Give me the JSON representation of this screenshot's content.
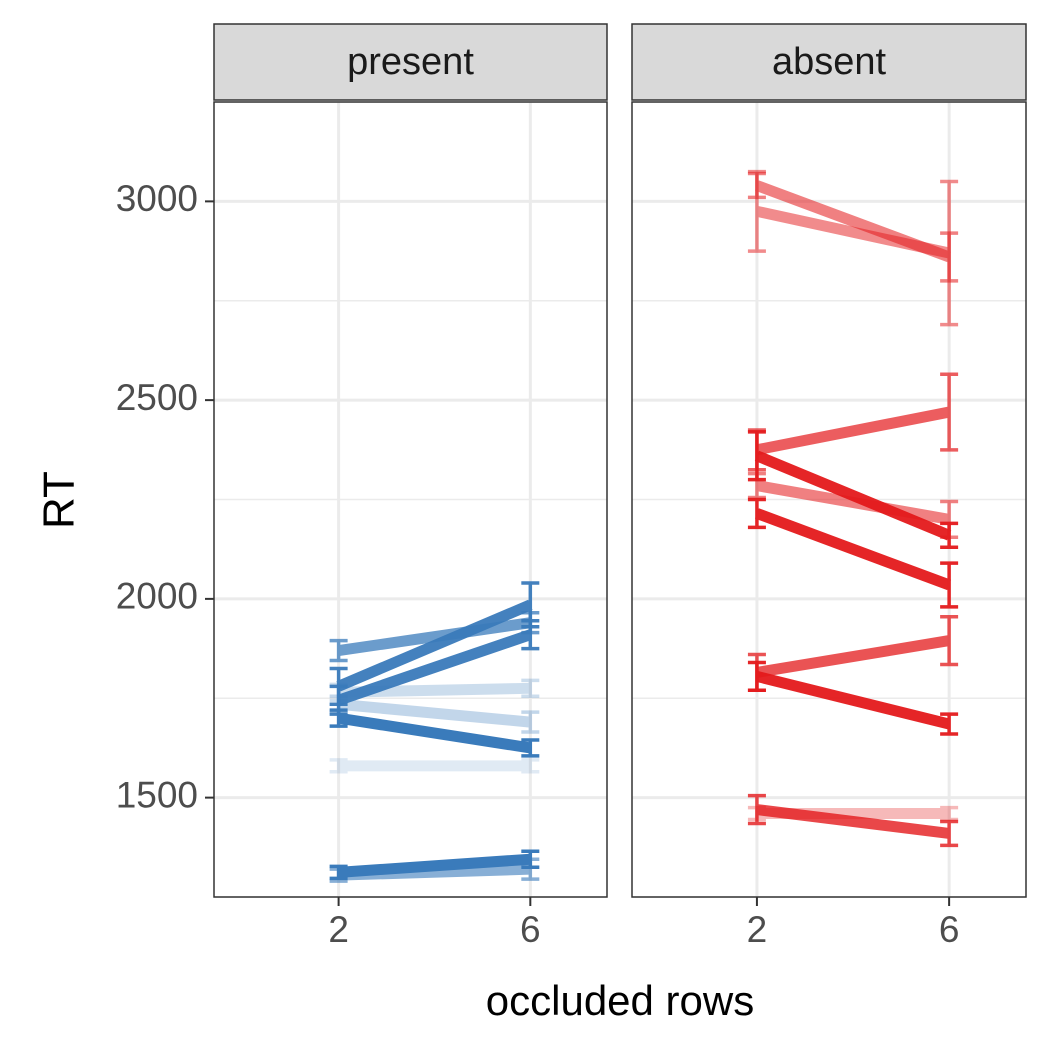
{
  "chart_data": {
    "type": "line",
    "ylabel": "RT",
    "xlabel": "occluded rows",
    "x_ticks": [
      2,
      6
    ],
    "y_ticks": [
      1500,
      2000,
      2500,
      3000
    ],
    "ylim": [
      1250,
      3250
    ],
    "xlim": [
      -0.6,
      7.6
    ],
    "grid": true,
    "colors": {
      "present": "#3a7bbb",
      "absent": "#e41a1c"
    },
    "facets": [
      {
        "label": "present",
        "color": "#3a7bbb",
        "series": [
          {
            "x": [
              2,
              6
            ],
            "y": [
              1870,
              1940
            ],
            "err": [
              25,
              25
            ],
            "alpha": 0.75
          },
          {
            "x": [
              2,
              6
            ],
            "y": [
              1780,
              1985
            ],
            "err": [
              45,
              55
            ],
            "alpha": 0.95
          },
          {
            "x": [
              2,
              6
            ],
            "y": [
              1745,
              1910
            ],
            "err": [
              35,
              35
            ],
            "alpha": 0.95
          },
          {
            "x": [
              2,
              6
            ],
            "y": [
              1700,
              1625
            ],
            "err": [
              20,
              20
            ],
            "alpha": 1.0
          },
          {
            "x": [
              2,
              6
            ],
            "y": [
              1765,
              1775
            ],
            "err": [
              20,
              20
            ],
            "alpha": 0.25
          },
          {
            "x": [
              2,
              6
            ],
            "y": [
              1735,
              1690
            ],
            "err": [
              20,
              25
            ],
            "alpha": 0.3
          },
          {
            "x": [
              2,
              6
            ],
            "y": [
              1580,
              1580
            ],
            "err": [
              15,
              15
            ],
            "alpha": 0.15
          },
          {
            "x": [
              2,
              6
            ],
            "y": [
              1312,
              1345
            ],
            "err": [
              15,
              20
            ],
            "alpha": 1.0
          },
          {
            "x": [
              2,
              6
            ],
            "y": [
              1305,
              1320
            ],
            "err": [
              15,
              25
            ],
            "alpha": 0.6
          }
        ]
      },
      {
        "label": "absent",
        "color": "#e41a1c",
        "series": [
          {
            "x": [
              2,
              6
            ],
            "y": [
              3040,
              2860
            ],
            "err": [
              30,
              60
            ],
            "alpha": 0.55
          },
          {
            "x": [
              2,
              6
            ],
            "y": [
              2975,
              2870
            ],
            "err": [
              100,
              180
            ],
            "alpha": 0.5
          },
          {
            "x": [
              2,
              6
            ],
            "y": [
              2375,
              2470
            ],
            "err": [
              50,
              95
            ],
            "alpha": 0.7
          },
          {
            "x": [
              2,
              6
            ],
            "y": [
              2360,
              2160
            ],
            "err": [
              60,
              30
            ],
            "alpha": 0.95
          },
          {
            "x": [
              2,
              6
            ],
            "y": [
              2285,
              2200
            ],
            "err": [
              30,
              45
            ],
            "alpha": 0.55
          },
          {
            "x": [
              2,
              6
            ],
            "y": [
              2215,
              2035
            ],
            "err": [
              35,
              55
            ],
            "alpha": 0.95
          },
          {
            "x": [
              2,
              6
            ],
            "y": [
              1815,
              1895
            ],
            "err": [
              45,
              60
            ],
            "alpha": 0.75
          },
          {
            "x": [
              2,
              6
            ],
            "y": [
              1805,
              1685
            ],
            "err": [
              35,
              25
            ],
            "alpha": 0.95
          },
          {
            "x": [
              2,
              6
            ],
            "y": [
              1470,
              1410
            ],
            "err": [
              35,
              30
            ],
            "alpha": 0.8
          },
          {
            "x": [
              2,
              6
            ],
            "y": [
              1460,
              1460
            ],
            "err": [
              15,
              15
            ],
            "alpha": 0.3
          }
        ]
      }
    ]
  }
}
